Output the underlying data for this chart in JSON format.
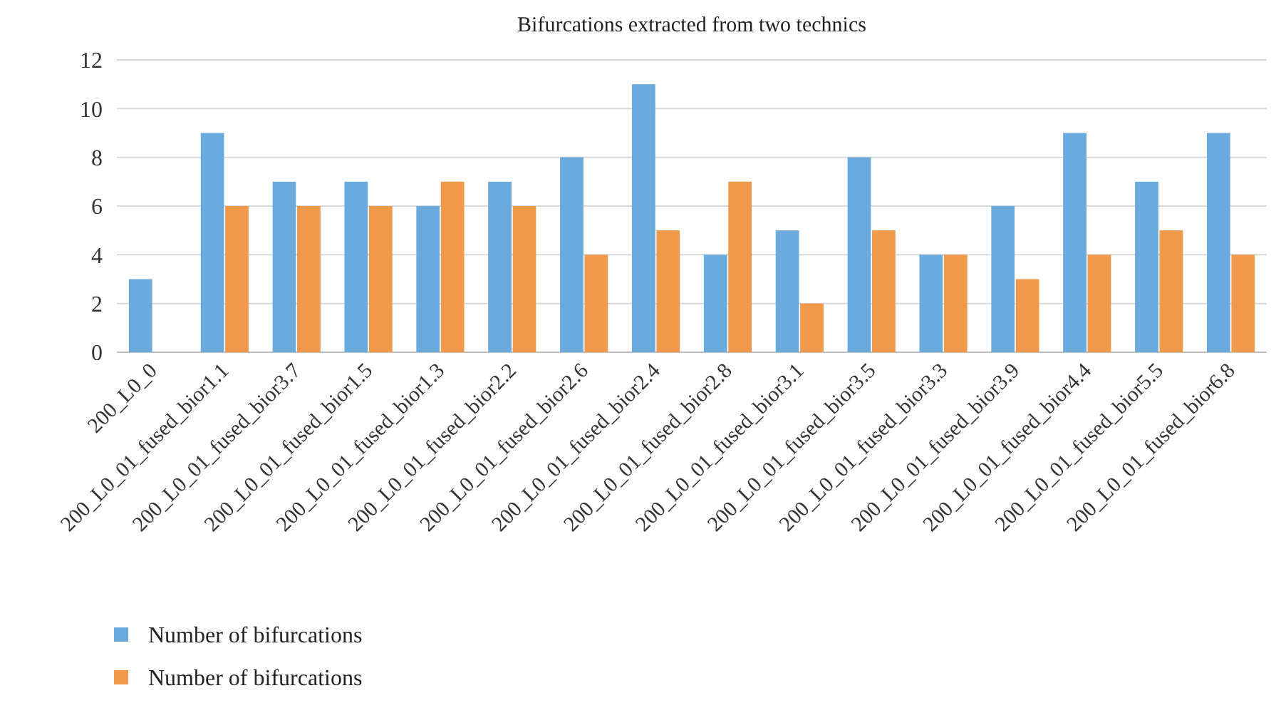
{
  "chart_data": {
    "type": "bar",
    "title": "Bifurcations extracted from two technics",
    "categories": [
      "200_L0_0",
      "200_L0_01_fused_bior1.1",
      "200_L0_01_fused_bior3.7",
      "200_L0_01_fused_bior1.5",
      "200_L0_01_fused_bior1.3",
      "200_L0_01_fused_bior2.2",
      "200_L0_01_fused_bior2.6",
      "200_L0_01_fused_bior2.4",
      "200_L0_01_fused_bior2.8",
      "200_L0_01_fused_bior3.1",
      "200_L0_01_fused_bior3.5",
      "200_L0_01_fused_bior3.3",
      "200_L0_01_fused_bior3.9",
      "200_L0_01_fused_bior4.4",
      "200_L0_01_fused_bior5.5",
      "200_L0_01_fused_bior6.8"
    ],
    "series": [
      {
        "name": "Number of bifurcations",
        "color": "#6aaadc",
        "values": [
          3,
          9,
          7,
          7,
          6,
          7,
          8,
          11,
          4,
          5,
          8,
          4,
          6,
          9,
          7,
          9
        ]
      },
      {
        "name": "Number of bifurcations",
        "color": "#f0994a",
        "values": [
          0,
          6,
          6,
          6,
          7,
          6,
          4,
          5,
          7,
          2,
          5,
          4,
          3,
          4,
          5,
          4
        ]
      }
    ],
    "ylim": [
      0,
      12
    ],
    "yticks": [
      0,
      2,
      4,
      6,
      8,
      10,
      12
    ],
    "grid": "y",
    "legend": "bottom left"
  }
}
